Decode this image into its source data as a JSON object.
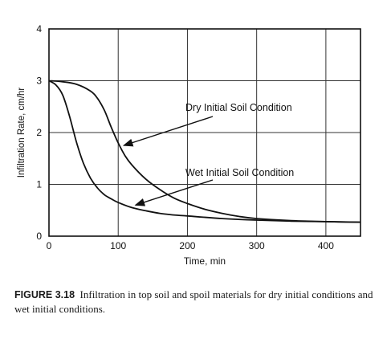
{
  "chart_data": {
    "type": "line",
    "title": "",
    "xlabel": "Time, min",
    "ylabel": "Infiltration Rate, cm/hr",
    "xlim": [
      0,
      450
    ],
    "ylim": [
      0,
      4
    ],
    "x_ticks": [
      "0",
      "100",
      "200",
      "300",
      "400"
    ],
    "y_ticks": [
      "0",
      "1",
      "2",
      "3",
      "4"
    ],
    "grid": true,
    "series": [
      {
        "name": "Dry Initial Soil Condition",
        "x": [
          0,
          20,
          40,
          60,
          70,
          80,
          90,
          100,
          110,
          120,
          140,
          160,
          180,
          200,
          225,
          250,
          275,
          300,
          350,
          400,
          450
        ],
        "y": [
          3.0,
          2.98,
          2.93,
          2.8,
          2.66,
          2.43,
          2.1,
          1.8,
          1.55,
          1.37,
          1.1,
          0.9,
          0.74,
          0.63,
          0.52,
          0.44,
          0.38,
          0.34,
          0.3,
          0.28,
          0.27
        ]
      },
      {
        "name": "Wet Initial Soil Condition",
        "x": [
          0,
          10,
          20,
          30,
          40,
          50,
          60,
          70,
          80,
          90,
          100,
          120,
          140,
          160,
          180,
          200,
          250,
          300,
          350,
          400,
          450
        ],
        "y": [
          3.0,
          2.92,
          2.72,
          2.3,
          1.8,
          1.4,
          1.12,
          0.93,
          0.8,
          0.72,
          0.65,
          0.55,
          0.49,
          0.44,
          0.41,
          0.39,
          0.34,
          0.31,
          0.29,
          0.28,
          0.27
        ]
      }
    ],
    "annotations": [
      {
        "text": "Dry Initial Soil Condition",
        "series": 0,
        "arrow_to": {
          "x": 108,
          "y": 1.75
        }
      },
      {
        "text": "Wet Initial Soil Condition",
        "series": 1,
        "arrow_to": {
          "x": 125,
          "y": 0.6
        }
      }
    ]
  },
  "caption": {
    "label": "FIGURE 3.18",
    "text": "Infiltration in top soil and spoil materials for dry initial conditions and wet initial conditions."
  }
}
